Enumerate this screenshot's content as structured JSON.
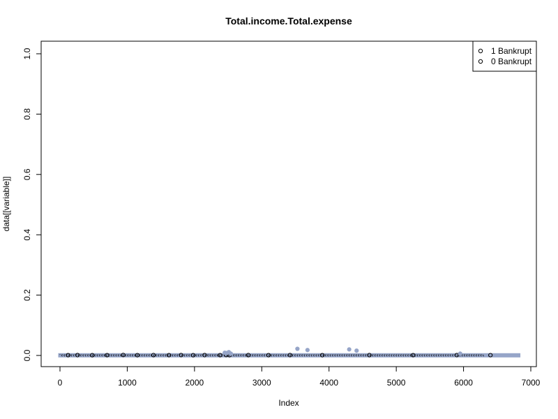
{
  "chart_data": {
    "type": "scatter",
    "title": "Total.income.Total.expense",
    "xlabel": "Index",
    "ylabel": "data[[variable]]",
    "xlim": [
      0,
      7000
    ],
    "ylim": [
      0.0,
      1.0
    ],
    "xticks": [
      0,
      1000,
      2000,
      3000,
      4000,
      5000,
      6000,
      7000
    ],
    "yticks": [
      0.0,
      0.2,
      0.4,
      0.6,
      0.8,
      1.0
    ],
    "xtick_labels": [
      "0",
      "1000",
      "2000",
      "3000",
      "4000",
      "5000",
      "6000",
      "7000"
    ],
    "ytick_labels": [
      "0.0",
      "0.2",
      "0.4",
      "0.6",
      "0.8",
      "1.0"
    ],
    "grid": false,
    "legend_position": "top-right",
    "n_points": 6819,
    "baseline_value": 0.0005,
    "series": [
      {
        "name": "1 Bankrupt",
        "color": "#000000",
        "marker": "o",
        "points": [
          [
            120,
            0.001
          ],
          [
            260,
            0.0012
          ],
          [
            480,
            0.0008
          ],
          [
            700,
            0.001
          ],
          [
            940,
            0.0015
          ],
          [
            1150,
            0.0009
          ],
          [
            1390,
            0.0011
          ],
          [
            1620,
            0.001
          ],
          [
            1800,
            0.0013
          ],
          [
            1980,
            0.0008
          ],
          [
            2150,
            0.0012
          ],
          [
            2380,
            0.001
          ],
          [
            2470,
            0.0014
          ],
          [
            2520,
            0.0009
          ],
          [
            2800,
            0.0011
          ],
          [
            3100,
            0.001
          ],
          [
            3420,
            0.0012
          ],
          [
            3900,
            0.0009
          ],
          [
            4600,
            0.0011
          ],
          [
            5250,
            0.001
          ],
          [
            5900,
            0.0012
          ],
          [
            6400,
            0.001
          ]
        ]
      },
      {
        "name": "0 Bankrupt",
        "color": "#96a5c8",
        "marker": "o",
        "points": [
          [
            2450,
            0.009
          ],
          [
            2480,
            0.008
          ],
          [
            2510,
            0.011
          ],
          [
            2540,
            0.006
          ],
          [
            3530,
            0.022
          ],
          [
            3680,
            0.018
          ],
          [
            4300,
            0.02
          ],
          [
            4410,
            0.016
          ],
          [
            5950,
            0.006
          ]
        ]
      }
    ]
  }
}
